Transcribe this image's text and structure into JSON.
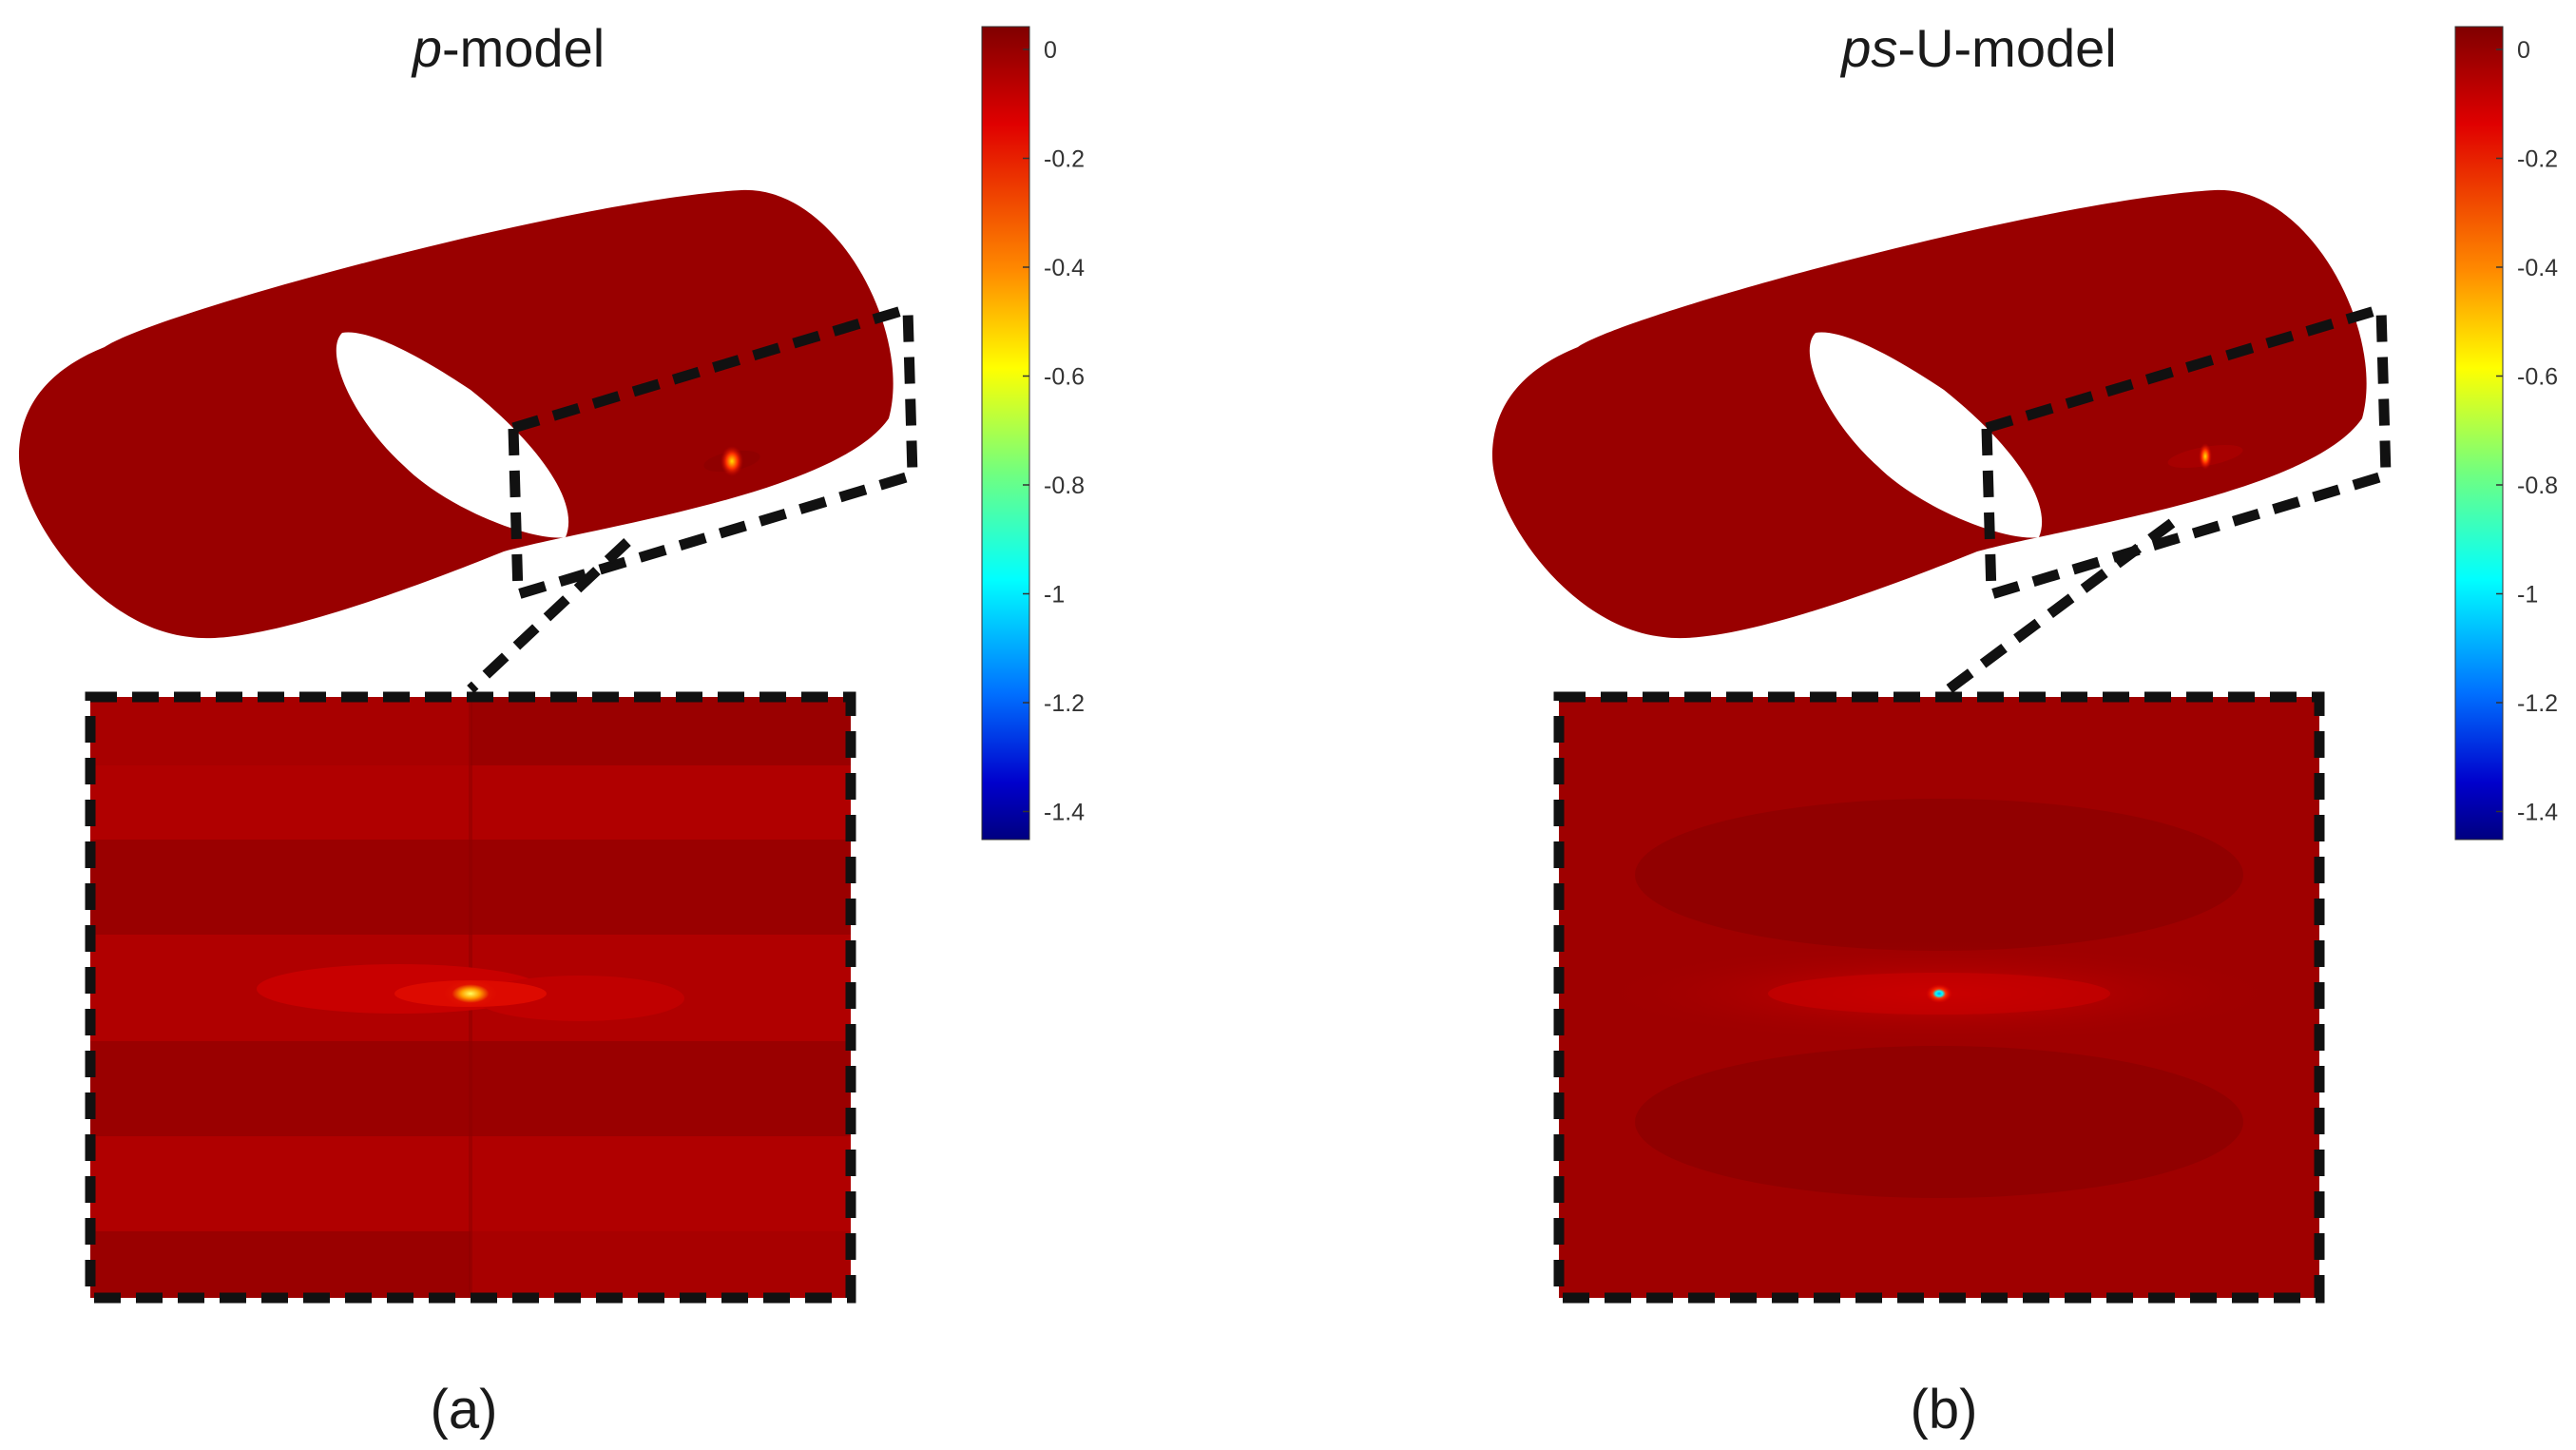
{
  "panels": [
    {
      "id": "a",
      "title_italic": "p",
      "title_rest": "-model",
      "caption": "(a)",
      "colorbar": {
        "ticks": [
          "0",
          "-0.2",
          "-0.4",
          "-0.6",
          "-0.8",
          "-1",
          "-1.2",
          "-1.4"
        ]
      }
    },
    {
      "id": "b",
      "title_italic": "ps",
      "title_rest": "-U-model",
      "caption": "(b)",
      "colorbar": {
        "ticks": [
          "0",
          "-0.2",
          "-0.4",
          "-0.6",
          "-0.8",
          "-1",
          "-1.2",
          "-1.4"
        ]
      }
    }
  ],
  "colormap": "jet",
  "colors": {
    "field": "#9b0000",
    "field_light": "#b00000",
    "hotspot": "#ffd700",
    "zoom_box": "#111111"
  }
}
